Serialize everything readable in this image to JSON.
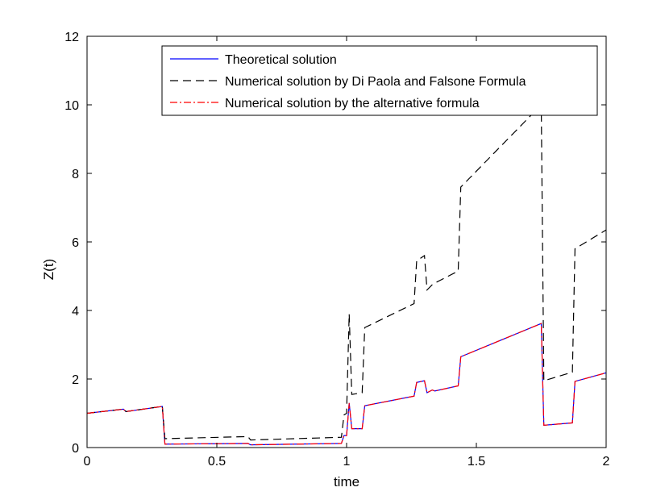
{
  "chart_data": {
    "type": "line",
    "title": "",
    "xlabel": "time",
    "ylabel": "Z(t)",
    "xlim": [
      0,
      2
    ],
    "ylim": [
      0,
      12
    ],
    "xticks": [
      0,
      0.5,
      1,
      1.5,
      2
    ],
    "xtick_labels": [
      "0",
      "0.5",
      "1",
      "1.5",
      "2"
    ],
    "yticks": [
      0,
      2,
      4,
      6,
      8,
      10,
      12
    ],
    "ytick_labels": [
      "0",
      "2",
      "4",
      "6",
      "8",
      "10",
      "12"
    ],
    "grid": false,
    "legend_position": "top-right",
    "series": [
      {
        "name": "Theoretical solution",
        "color": "#0000ff",
        "style": "solid",
        "x": [
          0,
          0.14,
          0.15,
          0.29,
          0.3,
          0.62,
          0.63,
          0.98,
          0.99,
          1.0,
          1.01,
          1.02,
          1.06,
          1.07,
          1.26,
          1.27,
          1.3,
          1.31,
          1.33,
          1.34,
          1.43,
          1.44,
          1.75,
          1.76,
          1.87,
          1.88,
          2.0
        ],
        "y": [
          1.0,
          1.12,
          1.05,
          1.2,
          0.1,
          0.12,
          0.08,
          0.12,
          0.35,
          0.35,
          1.3,
          0.55,
          0.55,
          1.22,
          1.5,
          1.9,
          1.95,
          1.6,
          1.68,
          1.65,
          1.8,
          2.65,
          3.62,
          0.65,
          0.72,
          1.93,
          2.18
        ]
      },
      {
        "name": "Numerical solution by Di Paola and Falsone Formula",
        "color": "#000000",
        "style": "dashed",
        "x": [
          0,
          0.14,
          0.15,
          0.29,
          0.3,
          0.62,
          0.63,
          0.98,
          0.99,
          1.0,
          1.01,
          1.02,
          1.06,
          1.07,
          1.26,
          1.27,
          1.3,
          1.31,
          1.33,
          1.34,
          1.43,
          1.44,
          1.75,
          1.76,
          1.87,
          1.88,
          2.0
        ],
        "y": [
          1.0,
          1.12,
          1.05,
          1.2,
          0.26,
          0.32,
          0.22,
          0.3,
          0.95,
          1.0,
          3.9,
          1.55,
          1.6,
          3.5,
          4.2,
          5.45,
          5.6,
          4.6,
          4.75,
          4.8,
          5.15,
          7.6,
          10.0,
          1.95,
          2.2,
          5.8,
          6.35
        ]
      },
      {
        "name": "Numerical solution by the alternative formula",
        "color": "#ff0000",
        "style": "dashdot",
        "x": [
          0,
          0.14,
          0.15,
          0.29,
          0.3,
          0.62,
          0.63,
          0.98,
          0.99,
          1.0,
          1.01,
          1.02,
          1.06,
          1.07,
          1.26,
          1.27,
          1.3,
          1.31,
          1.33,
          1.34,
          1.43,
          1.44,
          1.75,
          1.76,
          1.87,
          1.88,
          2.0
        ],
        "y": [
          1.0,
          1.12,
          1.05,
          1.2,
          0.1,
          0.12,
          0.08,
          0.12,
          0.35,
          0.35,
          1.3,
          0.55,
          0.55,
          1.22,
          1.5,
          1.9,
          1.95,
          1.6,
          1.68,
          1.65,
          1.8,
          2.65,
          3.62,
          0.65,
          0.72,
          1.93,
          2.18
        ]
      }
    ]
  }
}
